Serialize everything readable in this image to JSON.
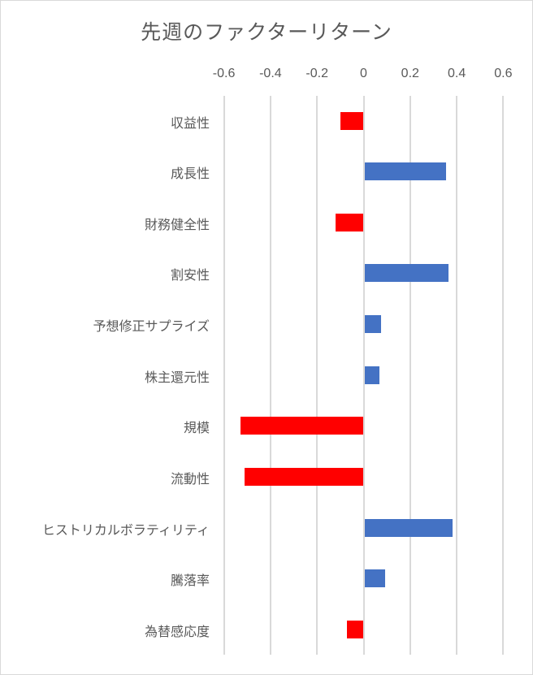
{
  "chart_data": {
    "type": "bar",
    "orientation": "horizontal",
    "title": "先週のファクターリターン",
    "xlabel": "",
    "ylabel": "",
    "xlim": [
      -0.6,
      0.6
    ],
    "x_ticks": [
      "-0.6",
      "-0.4",
      "-0.2",
      "0",
      "0.2",
      "0.4",
      "0.6"
    ],
    "grid": true,
    "axis_position": "top",
    "legend": null,
    "categories": [
      "収益性",
      "成長性",
      "財務健全性",
      "割安性",
      "予想修正サプライズ",
      "株主還元性",
      "規模",
      "流動性",
      "ヒストリカルボラティリティ",
      "騰落率",
      "為替感応度"
    ],
    "values": [
      -0.1,
      0.35,
      -0.12,
      0.36,
      0.07,
      0.065,
      -0.53,
      -0.51,
      0.38,
      0.09,
      -0.07
    ],
    "colors": {
      "positive": "#4472C4",
      "negative": "#FF0000",
      "grid": "#D9D9D9",
      "text": "#595959"
    }
  }
}
